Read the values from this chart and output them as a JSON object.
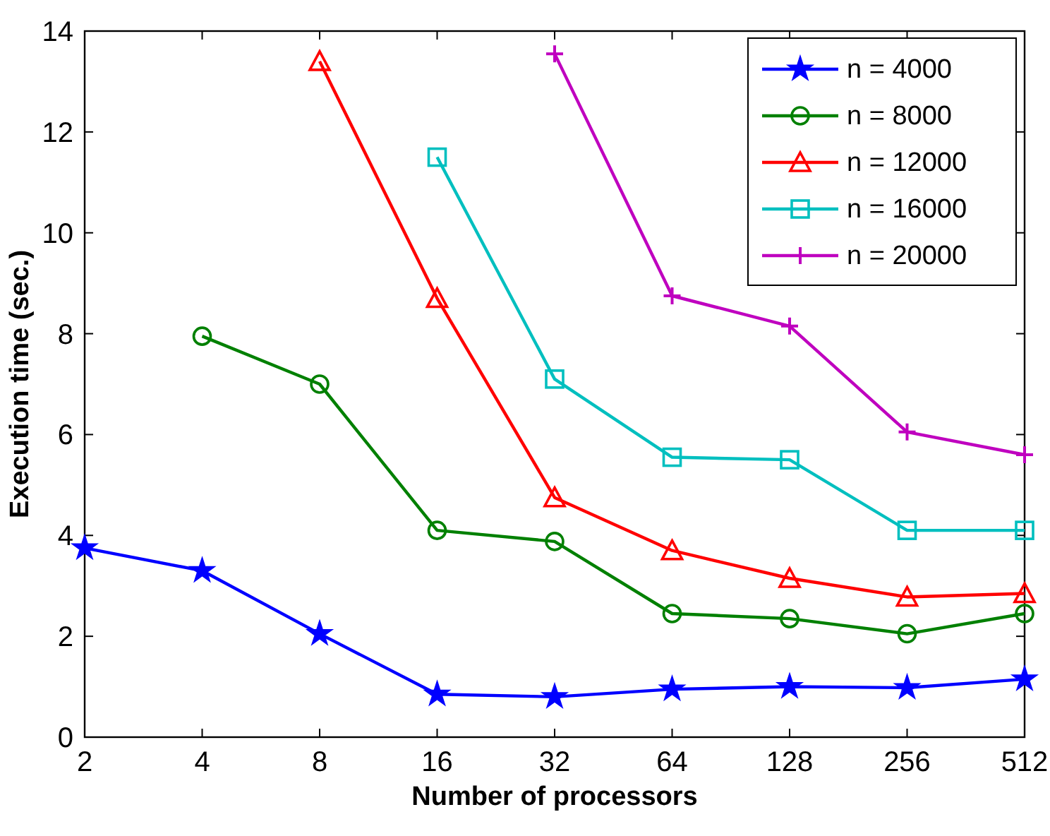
{
  "chart_data": {
    "type": "line",
    "xlabel": "Number of processors",
    "ylabel": "Execution time (sec.)",
    "log": "x",
    "xlim": [
      2,
      512
    ],
    "xticks": [
      2,
      4,
      8,
      16,
      32,
      64,
      128,
      256,
      512
    ],
    "ylim": [
      0,
      14
    ],
    "yticks": [
      0,
      2,
      4,
      6,
      8,
      10,
      12,
      14
    ],
    "grid": false,
    "legend": "top right",
    "line_style": "solid",
    "series": [
      {
        "name": "n = 4000",
        "color": "#0000ff",
        "marker": "star",
        "x": [
          2,
          4,
          8,
          16,
          32,
          64,
          128,
          256,
          512
        ],
        "values": [
          3.75,
          3.3,
          2.05,
          0.85,
          0.8,
          0.95,
          1.0,
          0.98,
          1.15
        ]
      },
      {
        "name": "n = 8000",
        "color": "#008000",
        "marker": "circle",
        "x": [
          4,
          8,
          16,
          32,
          64,
          128,
          256,
          512
        ],
        "values": [
          7.95,
          7.0,
          4.1,
          3.88,
          2.45,
          2.35,
          2.05,
          2.45
        ]
      },
      {
        "name": "n = 12000",
        "color": "#ff0000",
        "marker": "triangle",
        "x": [
          8,
          16,
          32,
          64,
          128,
          256,
          512
        ],
        "values": [
          13.4,
          8.7,
          4.75,
          3.7,
          3.15,
          2.78,
          2.85
        ]
      },
      {
        "name": "n = 16000",
        "color": "#00bfbf",
        "marker": "square",
        "x": [
          16,
          32,
          64,
          128,
          256,
          512
        ],
        "values": [
          11.5,
          7.1,
          5.55,
          5.5,
          4.1,
          4.1
        ]
      },
      {
        "name": "n = 20000",
        "color": "#bf00bf",
        "marker": "cross",
        "x": [
          32,
          64,
          128,
          256,
          512
        ],
        "values": [
          13.55,
          8.75,
          8.15,
          6.05,
          5.6
        ]
      }
    ]
  }
}
